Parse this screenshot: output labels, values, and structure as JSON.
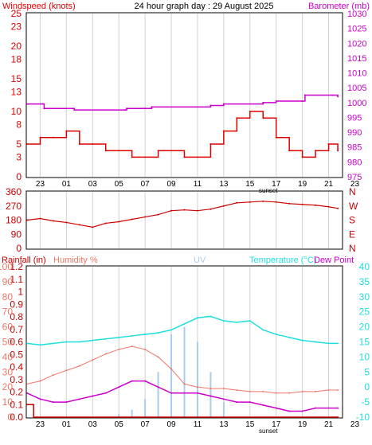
{
  "header": {
    "left_label": "Windspeed (knots)",
    "center_title": "24 hour graph day : 29 August 2025",
    "right_label": "Barometer (mb)"
  },
  "colors": {
    "wind_gust": "#dd0000",
    "wind_avg": "#006600",
    "wind_smooth": "#0000cc",
    "barometer": "#cc00cc",
    "direction": "#cc0000",
    "rain": "#cc0000",
    "humidity": "#ee7766",
    "uv": "#aaccee",
    "temperature": "#22dddd",
    "dewpoint": "#cc00cc",
    "grid": "#d0d0d0",
    "frame": "#000000"
  },
  "time_axis": {
    "hour_labels": [
      "23",
      "01",
      "03",
      "05",
      "07",
      "09",
      "11",
      "13",
      "15",
      "17",
      "19",
      "21",
      "23"
    ],
    "sunset_label": "sunset"
  },
  "panel_wind": {
    "left_ticks": [
      "25",
      "23",
      "20",
      "18",
      "15",
      "13",
      "10",
      "8",
      "5",
      "3",
      "0"
    ],
    "right_ticks": [
      "1030",
      "1025",
      "1020",
      "1015",
      "1010",
      "1005",
      "1000",
      "995",
      "990",
      "985",
      "980",
      "975"
    ]
  },
  "panel_dir": {
    "left_ticks": [
      "360",
      "270",
      "180",
      "90",
      "0"
    ],
    "right_ticks": [
      "N",
      "W",
      "S",
      "E",
      "N"
    ]
  },
  "panel_temp": {
    "labels": {
      "rain": "Rainfall (in)",
      "humidity": "Humidity %",
      "uv": "UV",
      "temperature": "Temperature (°C)",
      "dewpoint": "Dew Point"
    },
    "rain_ticks": [
      "1.2",
      "1.1",
      "1",
      "0.9",
      "0.8",
      "0.7",
      "0.6",
      "0.5",
      "0.4",
      "0.3",
      "0.2",
      "0.1",
      "0.0"
    ],
    "hum_ticks": [
      "100",
      "90",
      "80",
      "70",
      "60",
      "50",
      "40",
      "30",
      "20",
      "10",
      "0"
    ],
    "temp_ticks": [
      "40",
      "35",
      "30",
      "25",
      "20",
      "15",
      "10",
      "5",
      "0",
      "-5",
      "-10"
    ]
  },
  "chart_data": [
    {
      "type": "line",
      "title": "24 hour graph day : 29 August 2025",
      "x_unit": "hours",
      "x_range": [
        22,
        46
      ],
      "series": [
        {
          "name": "Windspeed (knots)",
          "axis": "left",
          "ylim": [
            0,
            25
          ],
          "x": [
            22,
            23,
            24,
            25,
            26,
            27,
            28,
            29,
            30,
            31,
            32,
            33,
            34,
            35,
            36,
            37,
            38,
            39,
            40,
            41,
            42,
            43,
            44,
            45,
            45.7
          ],
          "values": [
            5,
            6,
            6,
            7,
            5,
            5,
            4,
            4,
            3,
            3,
            4,
            4,
            3,
            3,
            5,
            7,
            9,
            10,
            9,
            6,
            4,
            3,
            4,
            5,
            4
          ]
        },
        {
          "name": "Barometer (mb)",
          "axis": "right",
          "ylim": [
            975,
            1030
          ],
          "x": [
            22,
            23.2,
            23.3,
            25.5,
            25.6,
            29.5,
            29.6,
            31,
            31.5,
            36,
            37,
            40,
            41,
            43,
            43.2,
            45.3,
            45.7
          ],
          "values": [
            999.5,
            999.5,
            998,
            998,
            997.5,
            997.5,
            998,
            998,
            998.5,
            999,
            999.5,
            1000,
            1000.5,
            1000.5,
            1002.5,
            1002.5,
            1002
          ]
        }
      ]
    },
    {
      "type": "line",
      "x_unit": "hours",
      "x_range": [
        22,
        46
      ],
      "ylim": [
        0,
        360
      ],
      "series": [
        {
          "name": "Wind direction",
          "x": [
            22,
            23,
            24,
            25,
            26,
            27,
            28,
            29,
            30,
            31,
            32,
            33,
            34,
            35,
            36,
            37,
            38,
            39,
            40,
            41,
            42,
            43,
            44,
            45,
            45.7
          ],
          "values": [
            180,
            190,
            175,
            165,
            150,
            135,
            160,
            170,
            185,
            200,
            215,
            240,
            245,
            240,
            250,
            270,
            290,
            295,
            300,
            295,
            285,
            280,
            275,
            265,
            255
          ]
        }
      ]
    },
    {
      "type": "line",
      "x_unit": "hours",
      "x_range": [
        22,
        46
      ],
      "series": [
        {
          "name": "Rainfall (in)",
          "axis": "rain",
          "ylim": [
            0,
            1.2
          ],
          "x": [
            22,
            22.4,
            22.5,
            45.7
          ],
          "values": [
            0.1,
            0.1,
            0.0,
            0.0
          ]
        },
        {
          "name": "Humidity %",
          "axis": "humidity",
          "ylim": [
            0,
            100
          ],
          "x": [
            22,
            23,
            24,
            25,
            26,
            27,
            28,
            29,
            30,
            31,
            32,
            33,
            34,
            35,
            36,
            37,
            38,
            39,
            40,
            41,
            42,
            43,
            44,
            45,
            45.7
          ],
          "values": [
            22,
            24,
            28,
            31,
            34,
            38,
            42,
            45,
            47,
            45,
            40,
            32,
            22,
            20,
            19,
            19,
            18,
            17,
            17,
            16,
            16,
            17,
            17,
            18,
            18
          ]
        },
        {
          "name": "UV",
          "axis": "humidity",
          "ylim": [
            0,
            100
          ],
          "x": [
            28,
            29,
            30,
            31,
            32,
            33,
            34,
            35,
            36,
            37,
            38
          ],
          "values": [
            0,
            2,
            5,
            12,
            30,
            55,
            60,
            50,
            30,
            10,
            0
          ]
        },
        {
          "name": "Temperature (°C)",
          "axis": "temperature",
          "ylim": [
            -10,
            40
          ],
          "x": [
            22,
            23,
            24,
            25,
            26,
            27,
            28,
            29,
            30,
            31,
            32,
            33,
            34,
            35,
            36,
            37,
            38,
            39,
            40,
            41,
            42,
            43,
            44,
            45,
            45.7
          ],
          "values": [
            14.5,
            14,
            14.5,
            15,
            15,
            15.5,
            16,
            16.5,
            17,
            17.5,
            18,
            19,
            21,
            23,
            23.5,
            22,
            21.5,
            22,
            19,
            17.5,
            16.5,
            15.5,
            15,
            14.5,
            14.5
          ]
        },
        {
          "name": "Dew Point",
          "axis": "temperature",
          "ylim": [
            -10,
            40
          ],
          "x": [
            22,
            23,
            24,
            25,
            26,
            27,
            28,
            29,
            30,
            31,
            32,
            33,
            34,
            35,
            36,
            37,
            38,
            39,
            40,
            41,
            42,
            43,
            44,
            45,
            45.7
          ],
          "values": [
            -2,
            -4,
            -5,
            -5,
            -4,
            -3,
            -2,
            0,
            2,
            2,
            0,
            -2,
            -2,
            -2,
            -3,
            -4,
            -5,
            -5,
            -6,
            -7,
            -8,
            -8,
            -7,
            -7,
            -7
          ]
        }
      ]
    }
  ]
}
